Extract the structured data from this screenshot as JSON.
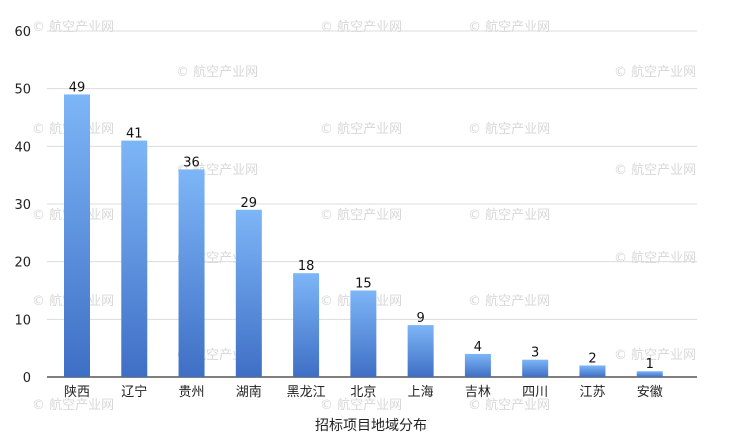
{
  "chart_data": {
    "type": "bar",
    "categories": [
      "陕西",
      "辽宁",
      "贵州",
      "湖南",
      "黑龙江",
      "北京",
      "上海",
      "吉林",
      "四川",
      "江苏",
      "安徽"
    ],
    "values": [
      49,
      41,
      36,
      29,
      18,
      15,
      9,
      4,
      3,
      2,
      1
    ],
    "title": "",
    "xlabel": "招标项目地域分布",
    "ylabel": "",
    "ylim": [
      0,
      60
    ],
    "yticks": [
      0,
      10,
      20,
      30,
      40,
      50,
      60
    ],
    "grid": true,
    "data_labels": true,
    "bar_gradient": [
      "#7db6f7",
      "#3f6fc5"
    ]
  },
  "watermark": "© 航空产业网"
}
